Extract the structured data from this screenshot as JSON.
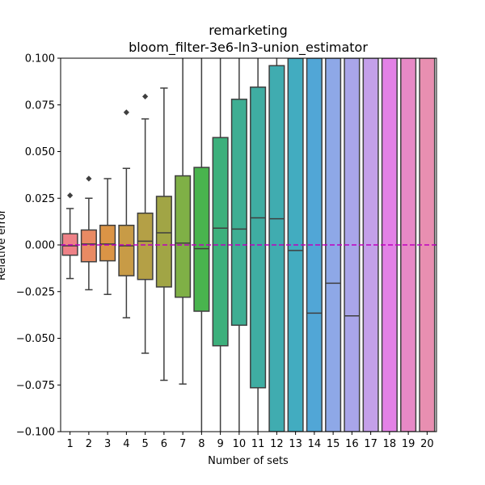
{
  "chart_data": {
    "type": "box",
    "title": "remarketing",
    "subtitle": "bloom_filter-3e6-ln3-union_estimator",
    "xlabel": "Number of sets",
    "ylabel": "Relative error",
    "ylim": [
      -0.1,
      0.1
    ],
    "yticks": [
      -0.1,
      -0.075,
      -0.05,
      -0.025,
      0.0,
      0.025,
      0.05,
      0.075,
      0.1
    ],
    "ytick_labels": [
      "−0.100",
      "−0.075",
      "−0.050",
      "−0.025",
      "0.000",
      "0.025",
      "0.050",
      "0.075",
      "0.100"
    ],
    "grid": false,
    "reference_line": {
      "y": 0.0,
      "color": "#bf00bf",
      "style": "dashed"
    },
    "boxes": [
      {
        "x": "1",
        "q1": -0.0055,
        "median": -0.0005,
        "q3": 0.006,
        "whisker_low": -0.018,
        "whisker_high": 0.0195,
        "outliers": [
          0.0265
        ],
        "color": "#ee8187"
      },
      {
        "x": "2",
        "q1": -0.009,
        "median": 0.0005,
        "q3": 0.008,
        "whisker_low": -0.024,
        "whisker_high": 0.025,
        "outliers": [
          0.0355
        ],
        "color": "#e98a63"
      },
      {
        "x": "3",
        "q1": -0.0085,
        "median": 0.0005,
        "q3": 0.0105,
        "whisker_low": -0.0265,
        "whisker_high": 0.0355,
        "outliers": [],
        "color": "#db9446"
      },
      {
        "x": "4",
        "q1": -0.0165,
        "median": -0.0005,
        "q3": 0.0105,
        "whisker_low": -0.039,
        "whisker_high": 0.041,
        "outliers": [
          0.071
        ],
        "color": "#c89b46"
      },
      {
        "x": "5",
        "q1": -0.0185,
        "median": 0.002,
        "q3": 0.017,
        "whisker_low": -0.058,
        "whisker_high": 0.0675,
        "outliers": [
          0.0795
        ],
        "color": "#b4a046"
      },
      {
        "x": "6",
        "q1": -0.0225,
        "median": 0.0065,
        "q3": 0.026,
        "whisker_low": -0.0725,
        "whisker_high": 0.084,
        "outliers": [],
        "color": "#a1a545"
      },
      {
        "x": "7",
        "q1": -0.028,
        "median": 0.001,
        "q3": 0.037,
        "whisker_low": -0.0745,
        "whisker_high": 0.1,
        "outliers": [],
        "color": "#7fb046"
      },
      {
        "x": "8",
        "q1": -0.0355,
        "median": -0.002,
        "q3": 0.0415,
        "whisker_low": -0.1,
        "whisker_high": 0.1,
        "outliers": [],
        "color": "#49b44e"
      },
      {
        "x": "9",
        "q1": -0.054,
        "median": 0.009,
        "q3": 0.0575,
        "whisker_low": -0.1,
        "whisker_high": 0.1,
        "outliers": [],
        "color": "#3db07c"
      },
      {
        "x": "10",
        "q1": -0.043,
        "median": 0.0085,
        "q3": 0.078,
        "whisker_low": -0.1,
        "whisker_high": 0.1,
        "outliers": [],
        "color": "#3eae93"
      },
      {
        "x": "11",
        "q1": -0.0765,
        "median": 0.0145,
        "q3": 0.0845,
        "whisker_low": -0.1,
        "whisker_high": 0.1,
        "outliers": [],
        "color": "#3fada2"
      },
      {
        "x": "12",
        "q1": -0.1,
        "median": 0.014,
        "q3": 0.096,
        "whisker_low": -0.1,
        "whisker_high": 0.1,
        "outliers": [],
        "color": "#40acb0"
      },
      {
        "x": "13",
        "q1": -0.1,
        "median": -0.003,
        "q3": 0.1,
        "whisker_low": -0.1,
        "whisker_high": 0.1,
        "outliers": [],
        "color": "#42acc0"
      },
      {
        "x": "14",
        "q1": -0.1,
        "median": -0.0365,
        "q3": 0.1,
        "whisker_low": -0.1,
        "whisker_high": 0.1,
        "outliers": [],
        "color": "#51a6d6"
      },
      {
        "x": "15",
        "q1": -0.1,
        "median": -0.0205,
        "q3": 0.1,
        "whisker_low": -0.1,
        "whisker_high": 0.1,
        "outliers": [],
        "color": "#8ea8e7"
      },
      {
        "x": "16",
        "q1": -0.1,
        "median": -0.038,
        "q3": 0.1,
        "whisker_low": -0.1,
        "whisker_high": 0.1,
        "outliers": [],
        "color": "#a9a5e9"
      },
      {
        "x": "17",
        "q1": -0.1,
        "median": null,
        "q3": 0.1,
        "whisker_low": -0.1,
        "whisker_high": 0.1,
        "outliers": [],
        "color": "#c4a0e9"
      },
      {
        "x": "18",
        "q1": -0.1,
        "median": null,
        "q3": 0.1,
        "whisker_low": -0.1,
        "whisker_high": 0.1,
        "outliers": [],
        "color": "#e382e6"
      },
      {
        "x": "19",
        "q1": -0.1,
        "median": null,
        "q3": 0.1,
        "whisker_low": -0.1,
        "whisker_high": 0.1,
        "outliers": [],
        "color": "#e789c6"
      },
      {
        "x": "20",
        "q1": -0.1,
        "median": null,
        "q3": 0.1,
        "whisker_low": -0.1,
        "whisker_high": 0.1,
        "outliers": [],
        "color": "#e88fb1"
      }
    ]
  }
}
